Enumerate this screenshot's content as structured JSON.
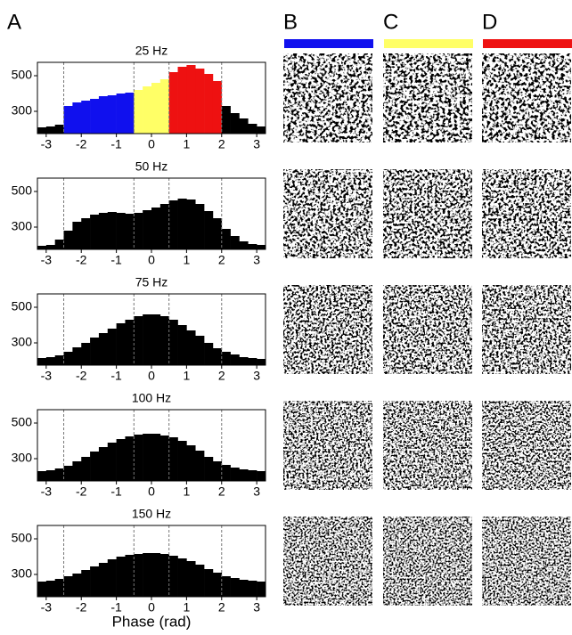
{
  "panel_labels": [
    "A",
    "B",
    "C",
    "D"
  ],
  "condition_colors": [
    "#1010ee",
    "#ffff66",
    "#ee1111"
  ],
  "chart_data": [
    {
      "type": "histogram",
      "title": "25 Hz",
      "bins": [
        -3.25,
        -3,
        -2.75,
        -2.5,
        -2.25,
        -2,
        -1.75,
        -1.5,
        -1.25,
        -1,
        -0.75,
        -0.5,
        -0.25,
        0,
        0.25,
        0.5,
        0.75,
        1,
        1.25,
        1.5,
        1.75,
        2,
        2.25,
        2.5,
        2.75,
        3,
        3.25
      ],
      "values": [
        210,
        215,
        225,
        330,
        350,
        360,
        370,
        385,
        390,
        400,
        405,
        420,
        440,
        460,
        480,
        520,
        550,
        560,
        540,
        510,
        470,
        330,
        290,
        260,
        230,
        215
      ],
      "colors": [
        "#000000",
        "#000000",
        "#000000",
        "#1010ee",
        "#1010ee",
        "#1010ee",
        "#1010ee",
        "#1010ee",
        "#1010ee",
        "#1010ee",
        "#1010ee",
        "#ffff66",
        "#ffff66",
        "#ffff66",
        "#ffff66",
        "#ee1111",
        "#ee1111",
        "#ee1111",
        "#ee1111",
        "#ee1111",
        "#ee1111",
        "#000000",
        "#000000",
        "#000000",
        "#000000",
        "#000000"
      ],
      "xlim": [
        -3.25,
        3.25
      ],
      "ylim": [
        175,
        575
      ],
      "xticks": [
        -3,
        -2,
        -1,
        0,
        1,
        2,
        3
      ],
      "yticks": [
        300,
        500
      ],
      "phase_boundaries": [
        -2.5,
        -0.5,
        0.5,
        2
      ]
    },
    {
      "type": "histogram",
      "title": "50 Hz",
      "bins": [
        -3.25,
        -3,
        -2.75,
        -2.5,
        -2.25,
        -2,
        -1.75,
        -1.5,
        -1.25,
        -1,
        -0.75,
        -0.5,
        -0.25,
        0,
        0.25,
        0.5,
        0.75,
        1,
        1.25,
        1.5,
        1.75,
        2,
        2.25,
        2.5,
        2.75,
        3,
        3.25
      ],
      "values": [
        195,
        200,
        230,
        280,
        330,
        350,
        370,
        380,
        385,
        380,
        375,
        380,
        395,
        410,
        430,
        450,
        460,
        455,
        430,
        390,
        350,
        290,
        250,
        220,
        205,
        200
      ],
      "color": "#000000",
      "xlim": [
        -3.25,
        3.25
      ],
      "ylim": [
        175,
        575
      ],
      "xticks": [
        -3,
        -2,
        -1,
        0,
        1,
        2,
        3
      ],
      "yticks": [
        300,
        500
      ],
      "phase_boundaries": [
        -2.5,
        -0.5,
        0.5,
        2
      ]
    },
    {
      "type": "histogram",
      "title": "75 Hz",
      "bins": [
        -3.25,
        -3,
        -2.75,
        -2.5,
        -2.25,
        -2,
        -1.75,
        -1.5,
        -1.25,
        -1,
        -0.75,
        -0.5,
        -0.25,
        0,
        0.25,
        0.5,
        0.75,
        1,
        1.25,
        1.5,
        1.75,
        2,
        2.25,
        2.5,
        2.75,
        3,
        3.25
      ],
      "values": [
        215,
        220,
        230,
        250,
        275,
        300,
        330,
        355,
        380,
        410,
        430,
        450,
        460,
        460,
        450,
        430,
        400,
        370,
        340,
        300,
        270,
        250,
        235,
        220,
        215,
        210
      ],
      "color": "#000000",
      "xlim": [
        -3.25,
        3.25
      ],
      "ylim": [
        175,
        575
      ],
      "xticks": [
        -3,
        -2,
        -1,
        0,
        1,
        2,
        3
      ],
      "yticks": [
        300,
        500
      ],
      "phase_boundaries": [
        -2.5,
        -0.5,
        0.5,
        2
      ]
    },
    {
      "type": "histogram",
      "title": "100 Hz",
      "bins": [
        -3.25,
        -3,
        -2.75,
        -2.5,
        -2.25,
        -2,
        -1.75,
        -1.5,
        -1.25,
        -1,
        -0.75,
        -0.5,
        -0.25,
        0,
        0.25,
        0.5,
        0.75,
        1,
        1.25,
        1.5,
        1.75,
        2,
        2.25,
        2.5,
        2.75,
        3,
        3.25
      ],
      "values": [
        230,
        235,
        245,
        260,
        285,
        310,
        340,
        365,
        390,
        410,
        425,
        435,
        440,
        440,
        430,
        420,
        400,
        375,
        345,
        310,
        285,
        265,
        250,
        240,
        235,
        230
      ],
      "color": "#000000",
      "xlim": [
        -3.25,
        3.25
      ],
      "ylim": [
        175,
        575
      ],
      "xticks": [
        -3,
        -2,
        -1,
        0,
        1,
        2,
        3
      ],
      "yticks": [
        300,
        500
      ],
      "phase_boundaries": [
        -2.5,
        -0.5,
        0.5,
        2
      ]
    },
    {
      "type": "histogram",
      "title": "150 Hz",
      "xlabel": "Phase (rad)",
      "bins": [
        -3.25,
        -3,
        -2.75,
        -2.5,
        -2.25,
        -2,
        -1.75,
        -1.5,
        -1.25,
        -1,
        -0.75,
        -0.5,
        -0.25,
        0,
        0.25,
        0.5,
        0.75,
        1,
        1.25,
        1.5,
        1.75,
        2,
        2.25,
        2.5,
        2.75,
        3,
        3.25
      ],
      "values": [
        260,
        265,
        275,
        290,
        305,
        325,
        345,
        365,
        385,
        400,
        410,
        415,
        420,
        420,
        415,
        405,
        390,
        375,
        355,
        330,
        310,
        290,
        280,
        270,
        265,
        260
      ],
      "color": "#000000",
      "xlim": [
        -3.25,
        3.25
      ],
      "ylim": [
        175,
        575
      ],
      "xticks": [
        -3,
        -2,
        -1,
        0,
        1,
        2,
        3
      ],
      "yticks": [
        300,
        500
      ],
      "phase_boundaries": [
        -2.5,
        -0.5,
        0.5,
        2
      ]
    }
  ]
}
